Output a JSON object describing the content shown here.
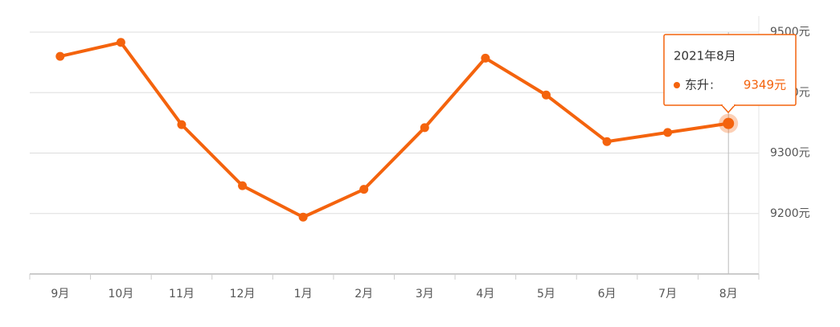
{
  "chart_data": {
    "type": "line",
    "categories": [
      "9月",
      "10月",
      "11月",
      "12月",
      "1月",
      "2月",
      "3月",
      "4月",
      "5月",
      "6月",
      "7月",
      "8月"
    ],
    "series": [
      {
        "name": "东升",
        "color": "#f4630d",
        "values": [
          9460,
          9483,
          9347,
          9246,
          9194,
          9240,
          9342,
          9457,
          9396,
          9319,
          9334,
          9349
        ]
      }
    ],
    "ylim": [
      9100,
      9500
    ],
    "yticks": [
      {
        "value": 9200,
        "label": "9200元"
      },
      {
        "value": 9300,
        "label": "9300元"
      },
      {
        "value": 9400,
        "label": "9400元"
      },
      {
        "value": 9500,
        "label": "9500元"
      }
    ],
    "grid": true,
    "tooltip": {
      "title": "2021年8月",
      "separator": ":",
      "value_label": "9349元"
    }
  }
}
